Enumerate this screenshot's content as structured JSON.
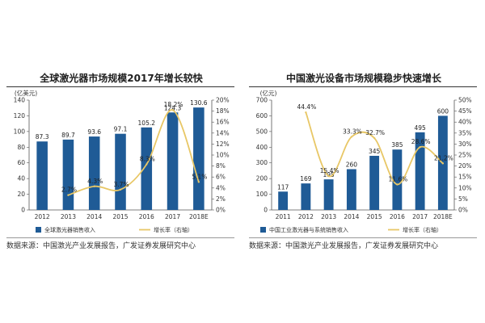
{
  "chart_data": [
    {
      "type": "bar",
      "title": "全球激光器市场规模2017年增长较快",
      "unit_label": "(亿美元)",
      "categories": [
        "2012",
        "2013",
        "2014",
        "2015",
        "2016",
        "2017",
        "2018E"
      ],
      "series": [
        {
          "name": "全球激光器销售收入",
          "kind": "bar",
          "axis": "left",
          "values": [
            87.3,
            89.7,
            93.6,
            97.1,
            105.2,
            124.3,
            130.6
          ],
          "labels": [
            "87.3",
            "89.7",
            "93.6",
            "97.1",
            "105.2",
            "124.3",
            "130.6"
          ]
        },
        {
          "name": "增长率（右轴）",
          "kind": "line",
          "axis": "right",
          "values": [
            null,
            2.7,
            4.3,
            3.7,
            8.3,
            18.2,
            5.1
          ],
          "labels": [
            "",
            "2.7%",
            "4.3%",
            "3.7%",
            "8.3%",
            "18.2%",
            "5.1%"
          ]
        }
      ],
      "ylim": [
        0,
        140
      ],
      "yticks": [
        0,
        20,
        40,
        60,
        80,
        100,
        120,
        140
      ],
      "ylim_right": [
        0,
        20
      ],
      "yticks_right": [
        "0%",
        "2%",
        "4%",
        "6%",
        "8%",
        "10%",
        "12%",
        "14%",
        "16%",
        "18%",
        "20%"
      ],
      "source": "数据来源：中国激光产业发展报告，广发证券发展研究中心"
    },
    {
      "type": "bar",
      "title": "中国激光设备市场规模稳步快速增长",
      "unit_label": "(亿元)",
      "categories": [
        "2011",
        "2012",
        "2013",
        "2014",
        "2015",
        "2016",
        "2017",
        "2018E"
      ],
      "series": [
        {
          "name": "中国工业激光器与系统销售收入",
          "kind": "bar",
          "axis": "left",
          "values": [
            117,
            169,
            195,
            260,
            345,
            385,
            495,
            600
          ],
          "labels": [
            "117",
            "169",
            "195",
            "260",
            "345",
            "385",
            "495",
            "600"
          ]
        },
        {
          "name": "增长率（右轴）",
          "kind": "line",
          "axis": "right",
          "values": [
            null,
            44.4,
            15.4,
            33.3,
            32.7,
            11.6,
            28.6,
            21.2
          ],
          "labels": [
            "",
            "44.4%",
            "15.4%",
            "33.3%",
            "32.7%",
            "11.6%",
            "28.6%",
            "21.2%"
          ]
        }
      ],
      "ylim": [
        0,
        700
      ],
      "yticks": [
        0,
        100,
        200,
        300,
        400,
        500,
        600,
        700
      ],
      "ylim_right": [
        0,
        50
      ],
      "yticks_right": [
        "0%",
        "5%",
        "10%",
        "15%",
        "20%",
        "25%",
        "30%",
        "35%",
        "40%",
        "45%",
        "50%"
      ],
      "source": "数据来源：中国激光产业发展报告，广发证券发展研究中心"
    }
  ],
  "colors": {
    "bar": "#1f5b96",
    "line": "#e8c766",
    "axis": "#555555"
  }
}
